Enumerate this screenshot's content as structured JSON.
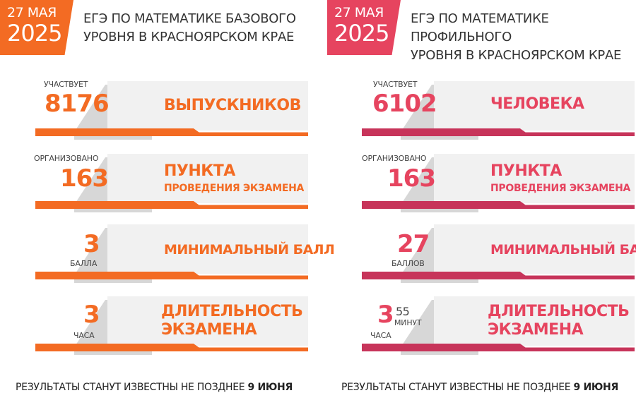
{
  "colors": {
    "left_accent": "#f36b23",
    "right_accent": "#e6445f",
    "right_bar": "#c7345a"
  },
  "left": {
    "date_day": "27 МАЯ",
    "date_year": "2025",
    "title_line1": "ЕГЭ ПО МАТЕМАТИКЕ БАЗОВОГО",
    "title_line2": "УРОВНЯ В КРАСНОЯРСКОМ КРАЕ",
    "rows": [
      {
        "top_label": "УЧАСТВУЕТ",
        "number": "8176",
        "caption": "ВЫПУСКНИКОВ"
      },
      {
        "top_label": "ОРГАНИЗОВАНО",
        "number": "163",
        "caption": "ПУНКТА",
        "caption_sub": "ПРОВЕДЕНИЯ ЭКЗАМЕНА"
      },
      {
        "number": "3",
        "bottom_label": "БАЛЛА",
        "caption": "МИНИМАЛЬНЫЙ БАЛЛ"
      },
      {
        "number": "3",
        "bottom_label": "ЧАСА",
        "caption_line1": "ДЛИТЕЛЬНОСТЬ",
        "caption_line2": "ЭКЗАМЕНА"
      }
    ],
    "footer_text": "РЕЗУЛЬТАТЫ СТАНУТ ИЗВЕСТНЫ НЕ ПОЗДНЕЕ ",
    "footer_bold": "9 ИЮНЯ"
  },
  "right": {
    "date_day": "27 МАЯ",
    "date_year": "2025",
    "title_line1": "ЕГЭ ПО МАТЕМАТИКЕ ПРОФИЛЬНОГО",
    "title_line2": "УРОВНЯ В КРАСНОЯРСКОМ КРАЕ",
    "rows": [
      {
        "top_label": "УЧАСТВУЕТ",
        "number": "6102",
        "caption": "ЧЕЛОВЕКА"
      },
      {
        "top_label": "ОРГАНИЗОВАНО",
        "number": "163",
        "caption": "ПУНКТА",
        "caption_sub": "ПРОВЕДЕНИЯ ЭКЗАМЕНА"
      },
      {
        "number": "27",
        "bottom_label": "БАЛЛОВ",
        "caption": "МИНИМАЛЬНЫЙ БАЛЛ"
      },
      {
        "number": "3",
        "bottom_label": "ЧАСА",
        "extra_number": "55",
        "extra_label": "МИНУТ",
        "caption_line1": "ДЛИТЕЛЬНОСТЬ",
        "caption_line2": "ЭКЗАМЕНА"
      }
    ],
    "footer_text": "РЕЗУЛЬТАТЫ СТАНУТ ИЗВЕСТНЫ НЕ ПОЗДНЕЕ ",
    "footer_bold": "9 ИЮНЯ"
  }
}
